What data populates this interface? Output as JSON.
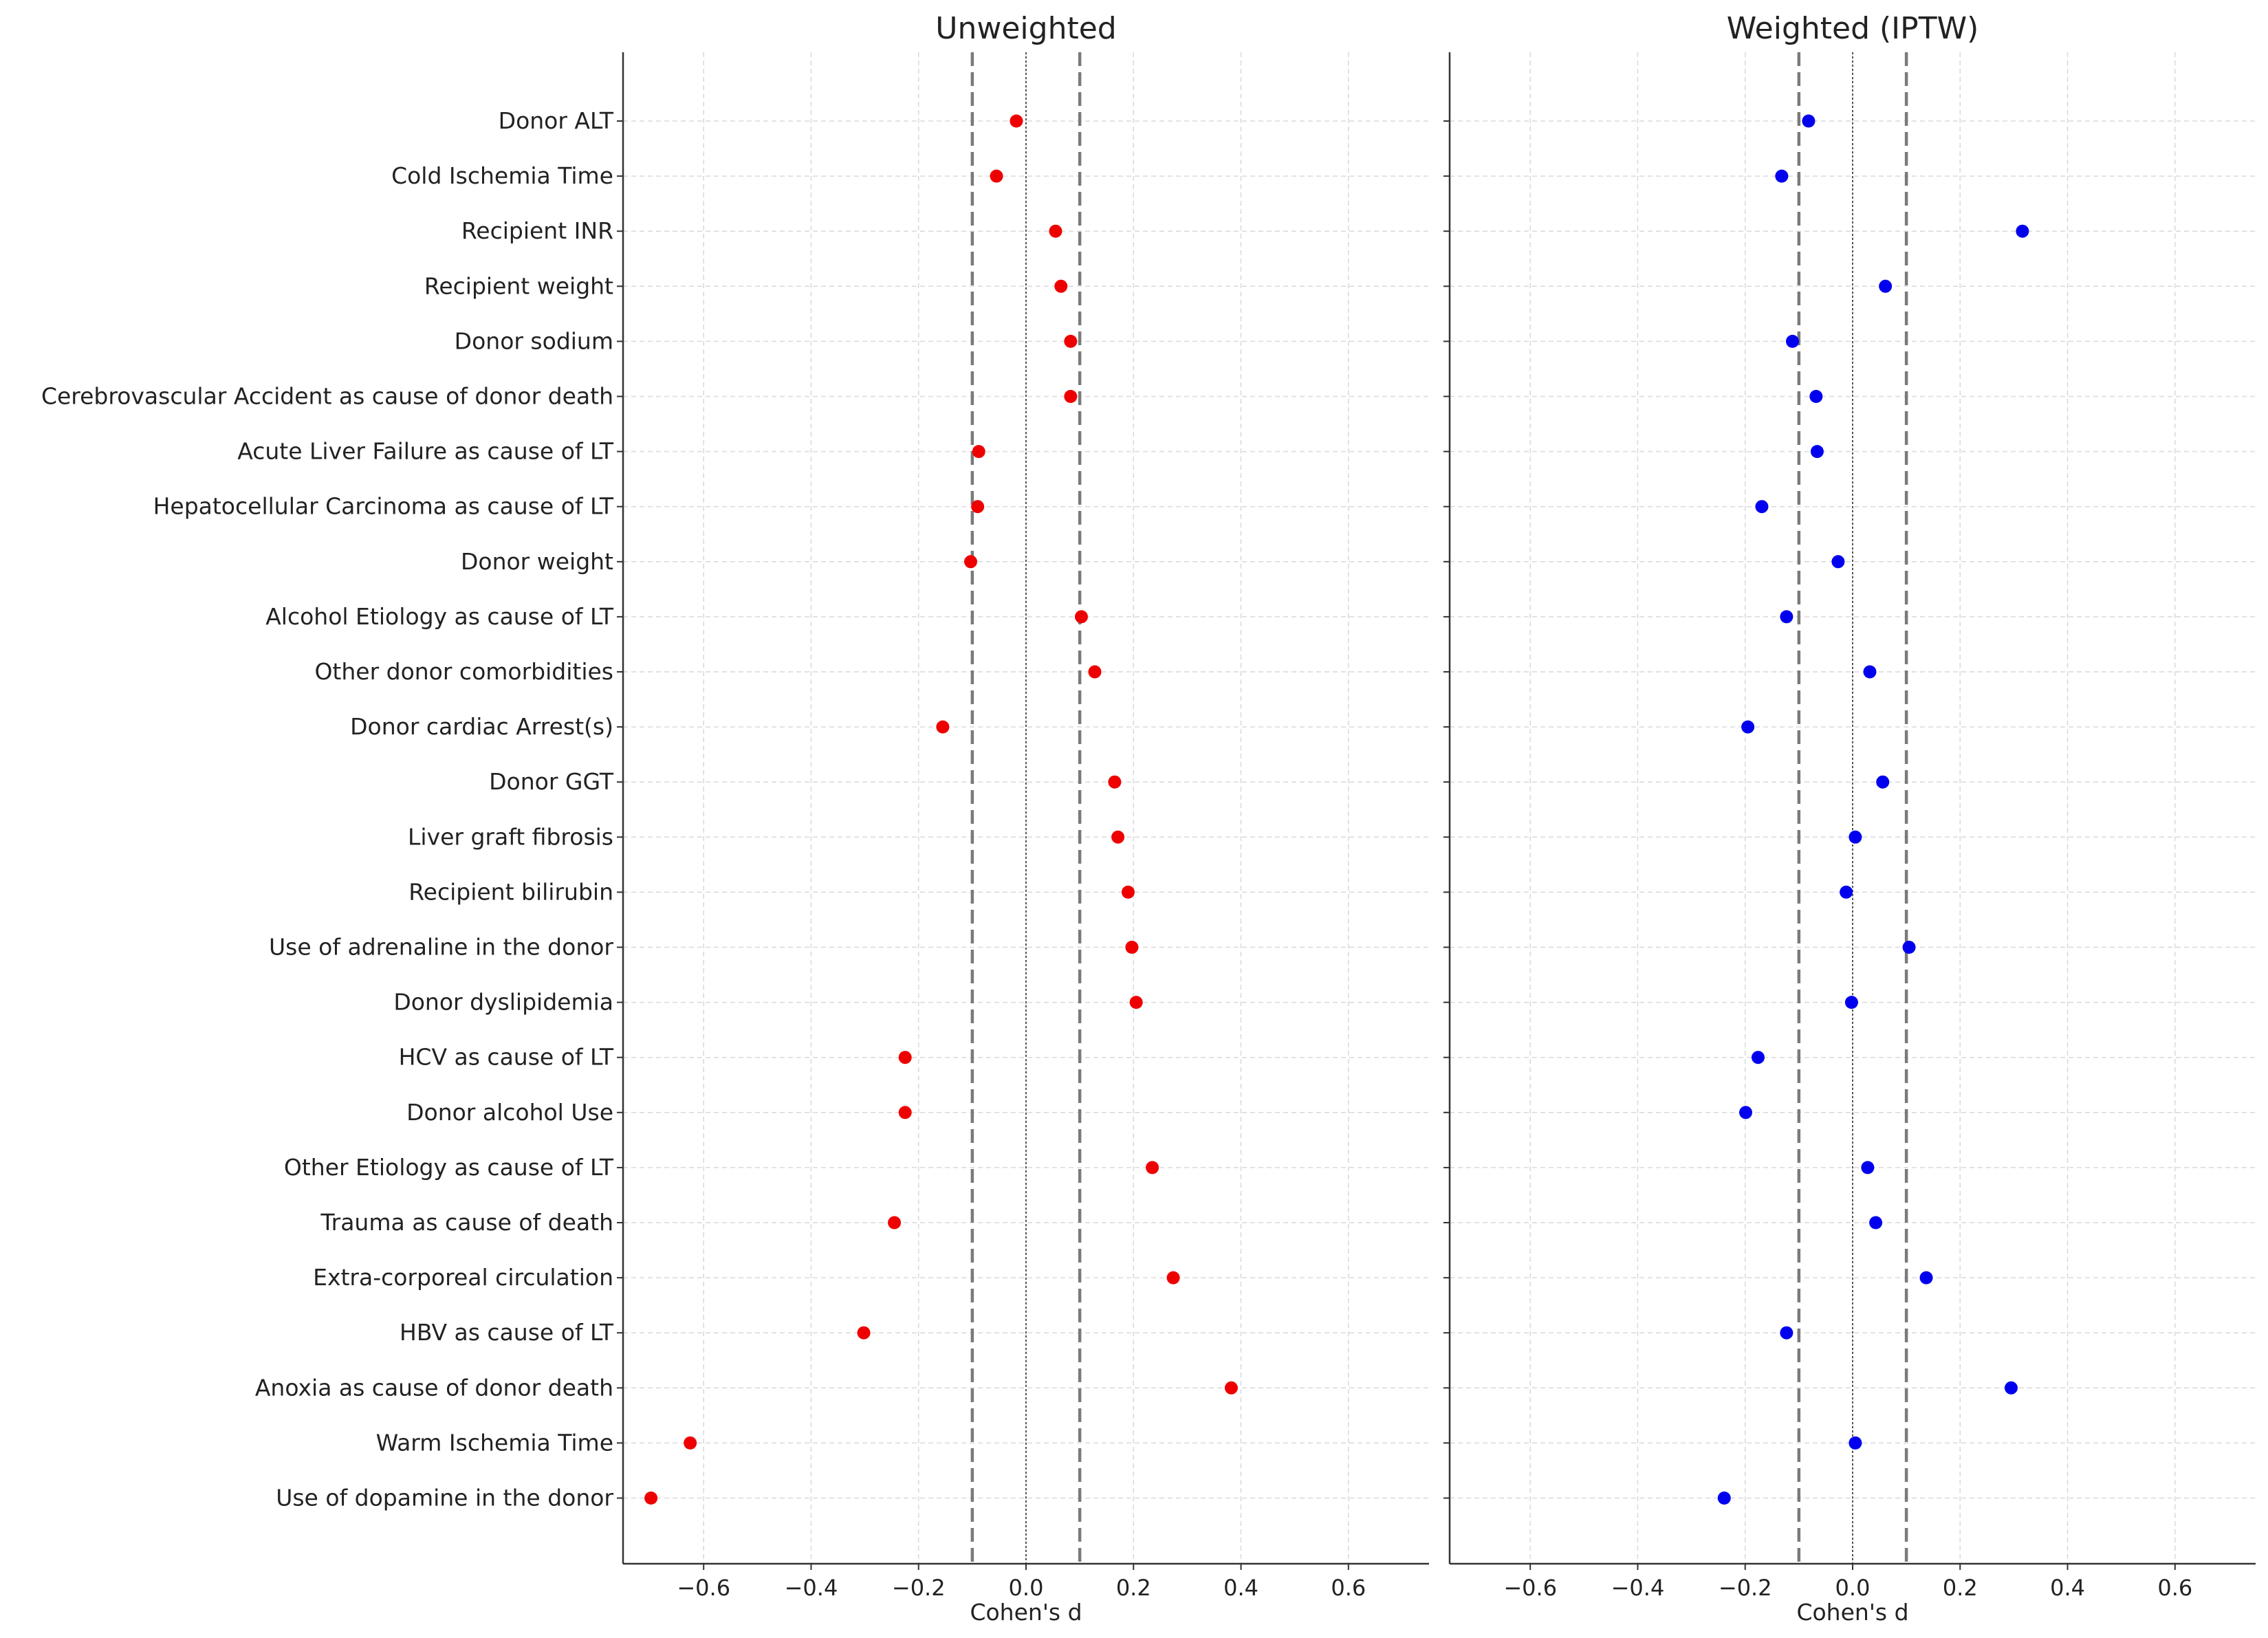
{
  "chart_data": {
    "type": "scatter",
    "xlabel": "Cohen's d",
    "xlim": [
      -0.75,
      0.75
    ],
    "xticks": [
      "−0.6",
      "−0.4",
      "−0.2",
      "0.0",
      "0.2",
      "0.4",
      "0.6"
    ],
    "xtick_values": [
      -0.6,
      -0.4,
      -0.2,
      0.0,
      0.2,
      0.4,
      0.6
    ],
    "threshold_lines": [
      -0.1,
      0.1
    ],
    "zero_line": 0.0,
    "grid": true,
    "categories": [
      "Donor ALT",
      "Cold Ischemia Time",
      "Recipient INR",
      "Recipient weight",
      "Donor sodium",
      "Cerebrovascular Accident as cause of donor death",
      "Acute Liver Failure as cause of LT",
      "Hepatocellular Carcinoma as cause of LT",
      "Donor weight",
      "Alcohol Etiology as cause of LT",
      "Other donor comorbidities",
      "Donor cardiac Arrest(s)",
      "Donor GGT",
      "Liver graft fibrosis",
      "Recipient bilirubin",
      "Use of adrenaline in the donor",
      "Donor dyslipidemia",
      "HCV as cause of LT",
      "Donor alcohol Use",
      "Other Etiology as cause of LT",
      "Trauma as cause of death",
      "Extra-corporeal circulation",
      "HBV as cause of LT",
      "Anoxia as cause of donor death",
      "Warm Ischemia Time",
      "Use of dopamine in the donor"
    ],
    "panels": [
      {
        "title": "Unweighted",
        "color": "#ee0000",
        "values": [
          -0.018,
          -0.055,
          0.055,
          0.065,
          0.083,
          0.083,
          -0.088,
          -0.09,
          -0.103,
          0.103,
          0.128,
          -0.155,
          0.165,
          0.171,
          0.19,
          0.197,
          0.205,
          -0.225,
          -0.225,
          0.235,
          -0.245,
          0.274,
          -0.302,
          0.382,
          -0.625,
          -0.698
        ]
      },
      {
        "title": "Weighted (IPTW)",
        "color": "#0000ee",
        "values": [
          -0.082,
          -0.132,
          0.316,
          0.061,
          -0.112,
          -0.068,
          -0.066,
          -0.169,
          -0.027,
          -0.123,
          0.032,
          -0.195,
          0.056,
          0.005,
          -0.012,
          0.105,
          -0.002,
          -0.176,
          -0.199,
          0.028,
          0.043,
          0.137,
          -0.123,
          0.295,
          0.005,
          -0.239
        ]
      }
    ]
  }
}
